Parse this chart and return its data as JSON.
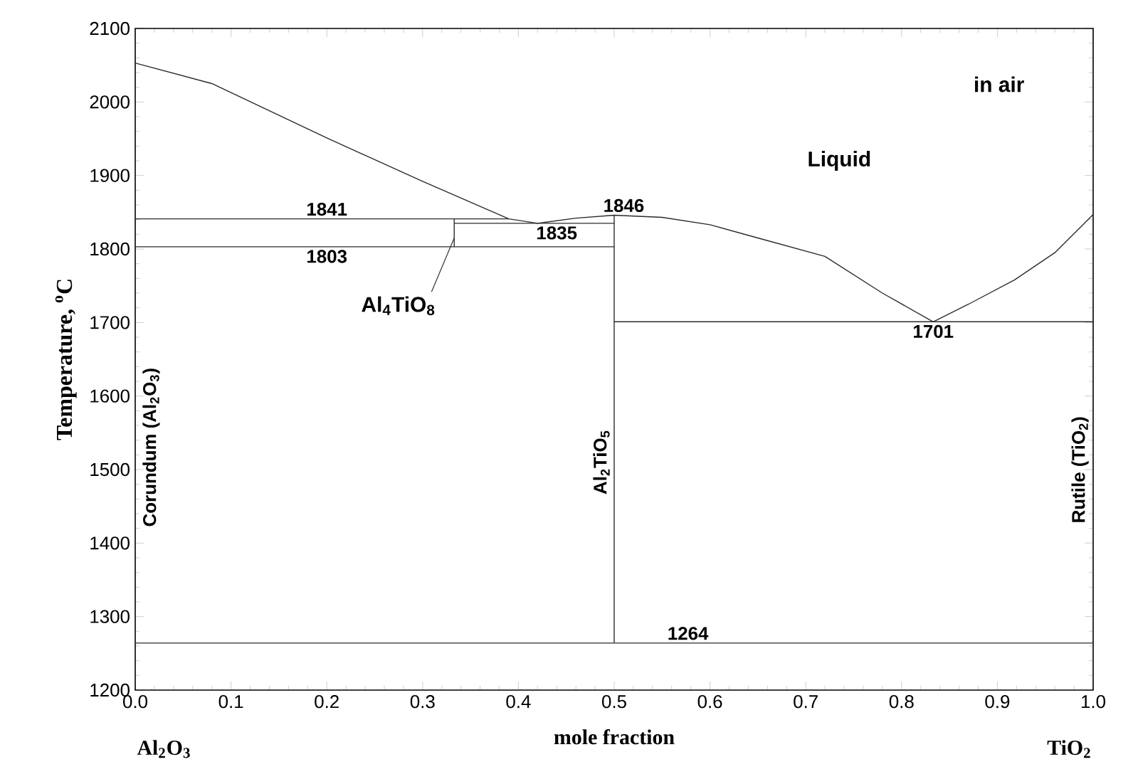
{
  "chart_data": {
    "type": "line",
    "xlabel": "mole fraction",
    "ylabel": "Temperature, $^{o}$C",
    "xlim": [
      0,
      1
    ],
    "ylim": [
      1200,
      2100
    ],
    "xticks": [
      {
        "value": 0,
        "label": "0.0"
      },
      {
        "value": 0.1,
        "label": "0.1"
      },
      {
        "value": 0.2,
        "label": "0.2"
      },
      {
        "value": 0.3,
        "label": "0.3"
      },
      {
        "value": 0.4,
        "label": "0.4"
      },
      {
        "value": 0.5,
        "label": "0.5"
      },
      {
        "value": 0.6,
        "label": "0.6"
      },
      {
        "value": 0.7,
        "label": "0.7"
      },
      {
        "value": 0.8,
        "label": "0.8"
      },
      {
        "value": 0.9,
        "label": "0.9"
      },
      {
        "value": 1,
        "label": "1.0"
      }
    ],
    "yticks": [
      1200,
      1300,
      1400,
      1500,
      1600,
      1700,
      1800,
      1900,
      2000,
      2100
    ],
    "grid": false,
    "marker": "none",
    "line_style": "solid",
    "series": [
      {
        "color": "#2b2b2b",
        "x": [
          0,
          0.08,
          0.2,
          0.3,
          0.39,
          0.42,
          0.46,
          0.5,
          0.55,
          0.6,
          0.65,
          0.72,
          0.78,
          0.833
        ],
        "values": [
          2053,
          2025,
          1951,
          1892,
          1841,
          1835,
          1842,
          1846,
          1843,
          1833,
          1815,
          1790,
          1740,
          1701
        ]
      },
      {
        "color": "#2b2b2b",
        "x": [
          0.833,
          0.87,
          0.918,
          0.96,
          1
        ],
        "values": [
          1701,
          1725,
          1758,
          1795,
          1847
        ]
      },
      {
        "color": "#2b2b2b",
        "x": [
          0,
          0.39
        ],
        "values": [
          1841,
          1841
        ]
      },
      {
        "color": "#2b2b2b",
        "x": [
          0,
          0.5
        ],
        "values": [
          1803,
          1803
        ]
      },
      {
        "color": "#2b2b2b",
        "x": [
          0.333,
          0.5
        ],
        "values": [
          1835,
          1835
        ]
      },
      {
        "color": "#2b2b2b",
        "x": [
          0.333,
          0.333
        ],
        "values": [
          1803,
          1841
        ]
      },
      {
        "color": "#2b2b2b",
        "x": [
          0.5,
          0.5
        ],
        "values": [
          1264,
          1846
        ]
      },
      {
        "color": "#2b2b2b",
        "x": [
          0.5,
          1
        ],
        "values": [
          1701,
          1701
        ]
      },
      {
        "color": "#2b2b2b",
        "x": [
          0,
          1
        ],
        "values": [
          1264,
          1264
        ]
      }
    ],
    "annotations": [
      "in air",
      "Liquid",
      {
        "text": "1841",
        "x": 0.2,
        "y": 1841
      },
      {
        "text": "1803",
        "x": 0.2,
        "y": 1803
      },
      {
        "text": "1835",
        "x": 0.44,
        "y": 1835
      },
      {
        "text": "1846",
        "x": 0.51,
        "y": 1846
      },
      {
        "text": "1701",
        "x": 0.833,
        "y": 1701
      },
      {
        "text": "1264",
        "x": 0.577,
        "y": 1264
      },
      {
        "text": "Al$_{4}$TiO$_{8}$",
        "x": 0.333,
        "y": 1815
      },
      "Corundum (Al$_{2}$O$_{3}$)",
      {
        "text": "Al$_{2}$TiO$_{5}$",
        "x": 0.5,
        "y": 1510
      },
      "Rutile (TiO$_{2}$)",
      "Al$_{2}$O$_{3}$",
      "TiO$_{2}$"
    ]
  }
}
